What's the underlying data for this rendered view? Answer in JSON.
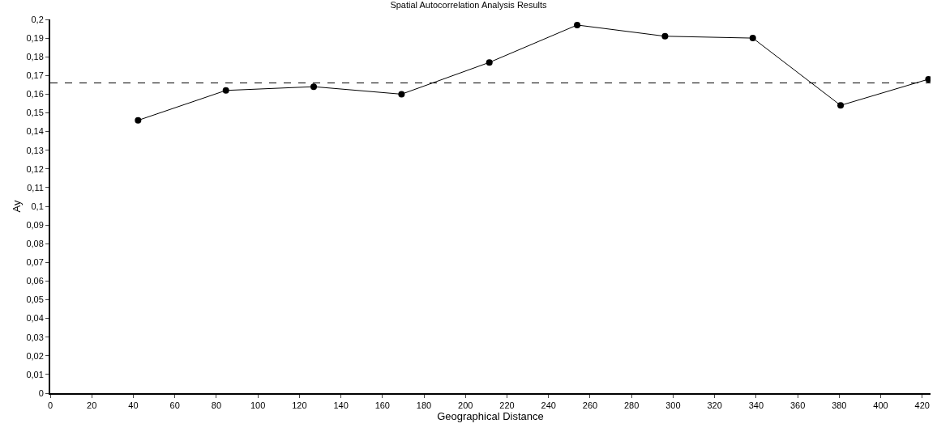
{
  "chart_data": {
    "type": "line",
    "title": "Spatial Autocorrelation Analysis Results",
    "xlabel": "Geographical Distance",
    "ylabel": "Ay",
    "x": [
      42.3,
      84.6,
      126.9,
      169.2,
      211.5,
      253.8,
      296.1,
      338.4,
      380.7,
      423
    ],
    "series": [
      {
        "color": "#000000",
        "values": [
          0.146,
          0.162,
          0.164,
          0.16,
          0.177,
          0.197,
          0.191,
          0.19,
          0.154,
          0.168
        ]
      }
    ],
    "xlim": [
      0,
      424
    ],
    "xticks": [
      0,
      20,
      40,
      60,
      80,
      100,
      120,
      140,
      160,
      180,
      200,
      220,
      240,
      260,
      280,
      300,
      320,
      340,
      360,
      380,
      400,
      420
    ],
    "ylim": [
      0,
      0.2
    ],
    "yticks": [
      0,
      {
        "value": 0.01,
        "label": "0,01"
      },
      {
        "value": 0.02,
        "label": "0,02"
      },
      {
        "value": 0.03,
        "label": "0,03"
      },
      {
        "value": 0.04,
        "label": "0,04"
      },
      {
        "value": 0.05,
        "label": "0,05"
      },
      {
        "value": 0.06,
        "label": "0,06"
      },
      {
        "value": 0.07,
        "label": "0,07"
      },
      {
        "value": 0.08,
        "label": "0,08"
      },
      {
        "value": 0.09,
        "label": "0,09"
      },
      {
        "value": 0.1,
        "label": "0,1"
      },
      {
        "value": 0.11,
        "label": "0,11"
      },
      {
        "value": 0.12,
        "label": "0,12"
      },
      {
        "value": 0.13,
        "label": "0,13"
      },
      {
        "value": 0.14,
        "label": "0,14"
      },
      {
        "value": 0.15,
        "label": "0,15"
      },
      {
        "value": 0.16,
        "label": "0,16"
      },
      {
        "value": 0.17,
        "label": "0,17"
      },
      {
        "value": 0.18,
        "label": "0,18"
      },
      {
        "value": 0.19,
        "label": "0,19"
      },
      {
        "value": 0.2,
        "label": "0,2"
      }
    ],
    "ref_lines": [
      {
        "axis": "y",
        "value": 0.166,
        "color": "#000000",
        "line_style": "dashed"
      }
    ],
    "marker": "circle"
  }
}
